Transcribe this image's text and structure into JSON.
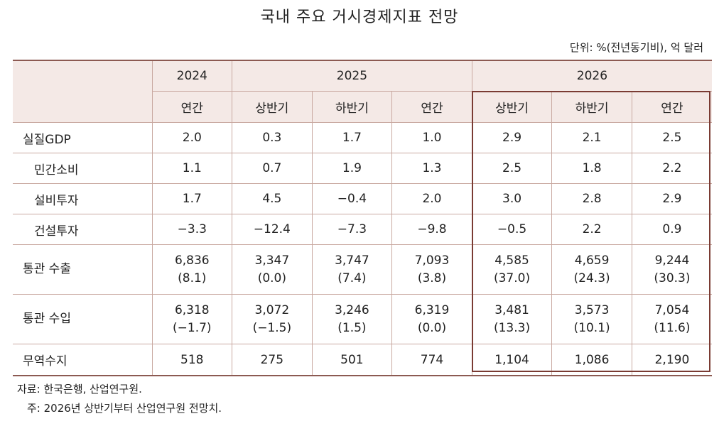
{
  "title": "국내 주요 거시경제지표 전망",
  "unit": "단위: %(전년동기비), 억 달러",
  "table": {
    "years": [
      "2024",
      "2025",
      "2026"
    ],
    "periods": [
      "연간",
      "상반기",
      "하반기",
      "연간",
      "상반기",
      "하반기",
      "연간"
    ],
    "rows": [
      {
        "label": "실질GDP",
        "values": [
          "2.0",
          "0.3",
          "1.7",
          "1.0",
          "2.9",
          "2.1",
          "2.5"
        ]
      },
      {
        "label": "민간소비",
        "values": [
          "1.1",
          "0.7",
          "1.9",
          "1.3",
          "2.5",
          "1.8",
          "2.2"
        ]
      },
      {
        "label": "설비투자",
        "values": [
          "1.7",
          "4.5",
          "−0.4",
          "2.0",
          "3.0",
          "2.8",
          "2.9"
        ]
      },
      {
        "label": "건설투자",
        "values": [
          "−3.3",
          "−12.4",
          "−7.3",
          "−9.8",
          "−0.5",
          "2.2",
          "0.9"
        ]
      },
      {
        "label": "통관 수출",
        "values": [
          "6,836",
          "3,347",
          "3,747",
          "7,093",
          "4,585",
          "4,659",
          "9,244"
        ],
        "sub": [
          "(8.1)",
          "(0.0)",
          "(7.4)",
          "(3.8)",
          "(37.0)",
          "(24.3)",
          "(30.3)"
        ]
      },
      {
        "label": "통관 수입",
        "values": [
          "6,318",
          "3,072",
          "3,246",
          "6,319",
          "3,481",
          "3,573",
          "7,054"
        ],
        "sub": [
          "(−1.7)",
          "(−1.5)",
          "(1.5)",
          "(0.0)",
          "(13.3)",
          "(10.1)",
          "(11.6)"
        ]
      },
      {
        "label": "무역수지",
        "values": [
          "518",
          "275",
          "501",
          "774",
          "1,104",
          "1,086",
          "2,190"
        ]
      }
    ]
  },
  "notes": {
    "source": "자료: 한국은행, 산업연구원.",
    "note": "주: 2026년 상반기부터 산업연구원 전망치."
  }
}
